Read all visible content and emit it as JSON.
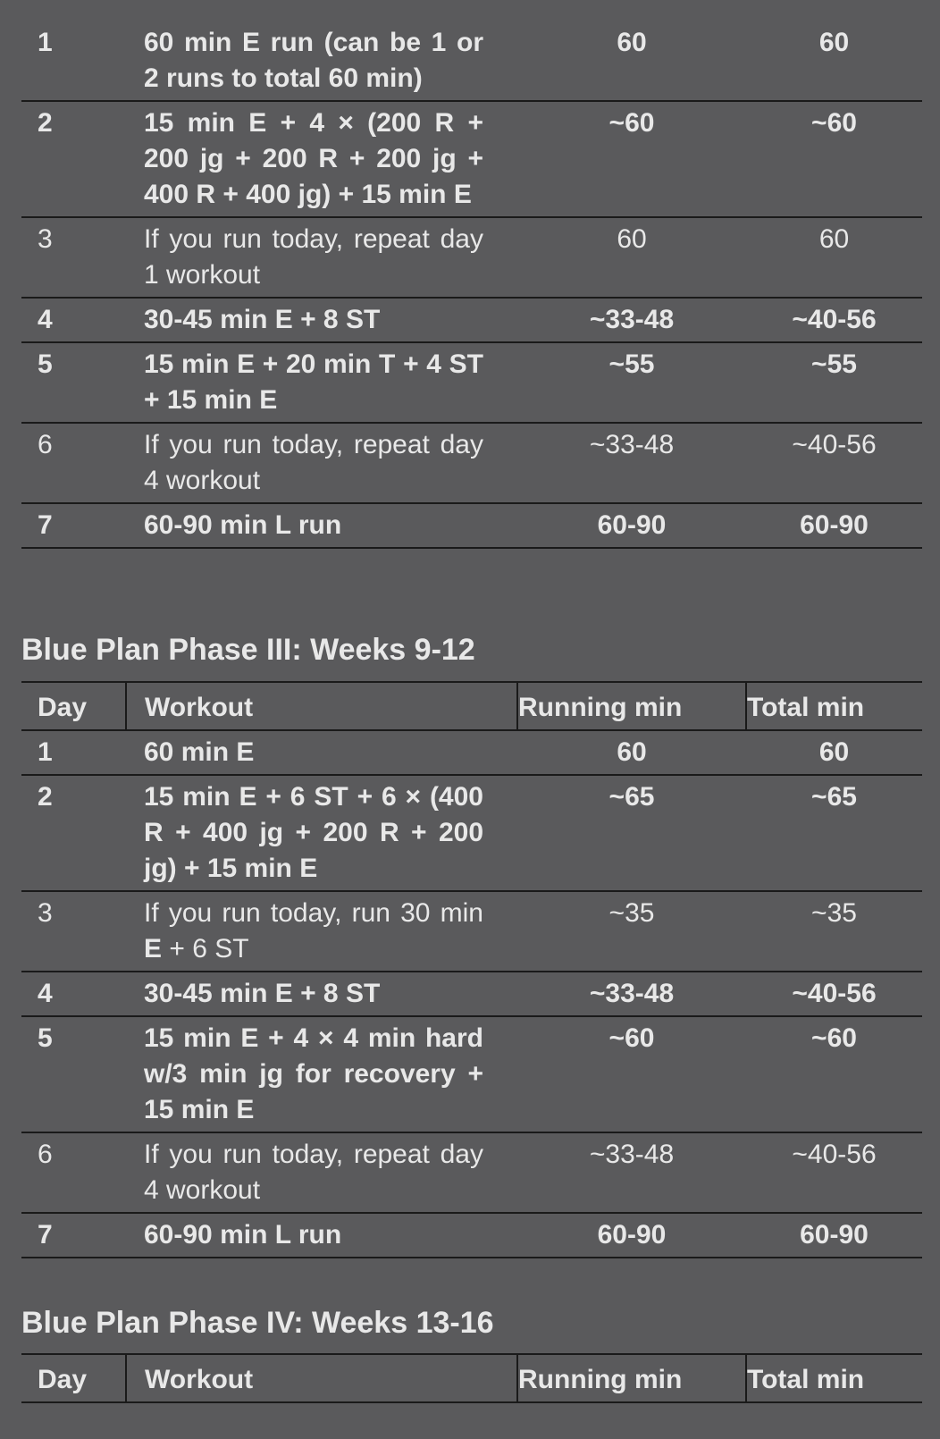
{
  "phase2_continued": {
    "rows": [
      {
        "day": "1",
        "workout": "60 min E run (can be 1 or 2 runs to total 60 min)",
        "running_min": "60",
        "total_min": "60",
        "bold": true
      },
      {
        "day": "2",
        "workout": "15 min E + 4 × (200 R + 200 jg + 200 R + 200 jg + 400 R + 400 jg) + 15 min E",
        "running_min": "~60",
        "total_min": "~60",
        "bold": true
      },
      {
        "day": "3",
        "workout": "If you run today, repeat day 1 workout",
        "running_min": "60",
        "total_min": "60",
        "bold": false
      },
      {
        "day": "4",
        "workout": "30-45 min E + 8 ST",
        "running_min": "~33-48",
        "total_min": "~40-56",
        "bold": true
      },
      {
        "day": "5",
        "workout": "15 min E + 20 min T + 4 ST + 15 min E",
        "running_min": "~55",
        "total_min": "~55",
        "bold": true
      },
      {
        "day": "6",
        "workout": "If you run today, repeat day 4 workout",
        "running_min": "~33-48",
        "total_min": "~40-56",
        "bold": false
      },
      {
        "day": "7",
        "workout": "60-90 min L run",
        "running_min": "60-90",
        "total_min": "60-90",
        "bold": true
      }
    ]
  },
  "phase3": {
    "title": "Blue Plan Phase III: Weeks 9-12",
    "headers": {
      "day": "Day",
      "workout": "Workout",
      "running_min": "Running min",
      "total_min": "Total min"
    },
    "rows": [
      {
        "day": "1",
        "workout": "60 min E",
        "running_min": "60",
        "total_min": "60",
        "bold": true
      },
      {
        "day": "2",
        "workout": "15 min E + 6 ST + 6 × (400 R + 400 jg + 200 R + 200 jg) + 15 min E",
        "running_min": "~65",
        "total_min": "~65",
        "bold": true
      },
      {
        "day": "3",
        "workout_prefix": "If you run today, run 30 min ",
        "workout_bold": "E",
        "workout_suffix": " + 6 ST",
        "running_min": "~35",
        "total_min": "~35",
        "bold": false
      },
      {
        "day": "4",
        "workout": "30-45 min E + 8 ST",
        "running_min": "~33-48",
        "total_min": "~40-56",
        "bold": true
      },
      {
        "day": "5",
        "workout": "15 min E + 4 × 4 min hard w/3 min jg for recovery + 15 min E",
        "running_min": "~60",
        "total_min": "~60",
        "bold": true
      },
      {
        "day": "6",
        "workout": "If you run today, repeat day 4 workout",
        "running_min": "~33-48",
        "total_min": "~40-56",
        "bold": false
      },
      {
        "day": "7",
        "workout": "60-90 min L run",
        "running_min": "60-90",
        "total_min": "60-90",
        "bold": true
      }
    ]
  },
  "phase4": {
    "title": "Blue Plan Phase IV: Weeks 13-16",
    "headers": {
      "day": "Day",
      "workout": "Workout",
      "running_min": "Running min",
      "total_min": "Total min"
    }
  }
}
